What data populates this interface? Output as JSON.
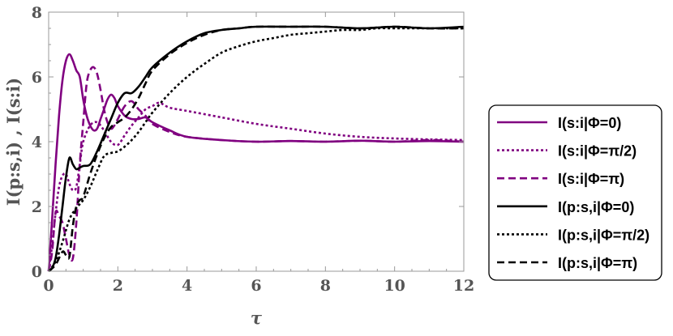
{
  "chart_data": {
    "type": "line",
    "title": "",
    "xlabel": "τ",
    "ylabel": "I(p:s,i) ,  I(s:i)",
    "xlim": [
      0,
      12
    ],
    "ylim": [
      0,
      8
    ],
    "x_ticks": [
      "0",
      "2",
      "4",
      "6",
      "8",
      "10",
      "12"
    ],
    "y_ticks": [
      "0",
      "2",
      "4",
      "6",
      "8"
    ],
    "grid": false,
    "legend_position": "right",
    "series": [
      {
        "name": "I(s:i|Φ=0)",
        "color": "#800080",
        "dash": "solid",
        "x": [
          0,
          0.1,
          0.2,
          0.3,
          0.4,
          0.5,
          0.6,
          0.7,
          0.8,
          0.9,
          1.0,
          1.1,
          1.2,
          1.3,
          1.4,
          1.5,
          1.6,
          1.7,
          1.8,
          1.9,
          2.0,
          2.2,
          2.4,
          2.6,
          2.8,
          3.0,
          3.5,
          4,
          5,
          6,
          7,
          8,
          9,
          10,
          11,
          12
        ],
        "y": [
          0,
          1.6,
          3.3,
          4.8,
          5.9,
          6.5,
          6.7,
          6.5,
          6.2,
          6.0,
          5.3,
          4.8,
          4.5,
          4.35,
          4.4,
          4.7,
          5.0,
          5.3,
          5.45,
          5.35,
          5.1,
          4.8,
          4.7,
          4.7,
          4.75,
          4.6,
          4.35,
          4.15,
          4.05,
          4.0,
          4.02,
          4.0,
          4.03,
          4.0,
          4.02,
          4.0
        ]
      },
      {
        "name": "I(s:i|Φ=π/2)",
        "color": "#800080",
        "dash": "dotted",
        "x": [
          0,
          0.1,
          0.2,
          0.3,
          0.4,
          0.5,
          0.6,
          0.7,
          0.8,
          0.9,
          1.0,
          1.2,
          1.4,
          1.6,
          1.8,
          2.0,
          2.2,
          2.4,
          2.6,
          2.8,
          3.0,
          3.2,
          3.5,
          4,
          5,
          6,
          7,
          8,
          9,
          10,
          11,
          12
        ],
        "y": [
          0,
          0.8,
          1.8,
          2.6,
          2.95,
          3.0,
          2.7,
          2.5,
          2.6,
          3.3,
          4.0,
          4.5,
          4.6,
          4.35,
          4.0,
          3.9,
          4.2,
          4.5,
          4.75,
          5.0,
          5.1,
          5.2,
          5.05,
          4.95,
          4.75,
          4.55,
          4.4,
          4.25,
          4.15,
          4.1,
          4.07,
          4.05
        ]
      },
      {
        "name": "I(s:i|Φ=π)",
        "color": "#800080",
        "dash": "dashed",
        "x": [
          0,
          0.1,
          0.2,
          0.3,
          0.4,
          0.5,
          0.6,
          0.7,
          0.8,
          0.9,
          1.0,
          1.1,
          1.2,
          1.3,
          1.4,
          1.5,
          1.6,
          1.7,
          1.8,
          1.9,
          2.0,
          2.2,
          2.4,
          2.6,
          2.8,
          3.0,
          3.5,
          4,
          5,
          6,
          7,
          8,
          9,
          10,
          11,
          12
        ],
        "y": [
          0,
          0.6,
          1.8,
          1.7,
          1.5,
          1.0,
          0.5,
          0.4,
          1.5,
          3.3,
          4.6,
          5.8,
          6.2,
          6.3,
          6.1,
          5.6,
          5.0,
          4.6,
          4.4,
          4.5,
          4.7,
          5.1,
          5.25,
          5.0,
          4.8,
          4.55,
          4.3,
          4.15,
          4.05,
          4.0,
          4.02,
          4.0,
          4.03,
          4.0,
          4.05,
          4.0
        ]
      },
      {
        "name": "I(p:s,i|Φ=0)",
        "color": "#000000",
        "dash": "solid",
        "x": [
          0,
          0.1,
          0.2,
          0.3,
          0.4,
          0.5,
          0.6,
          0.7,
          0.8,
          0.9,
          1.0,
          1.2,
          1.4,
          1.6,
          1.8,
          2.0,
          2.2,
          2.4,
          2.6,
          2.8,
          3.0,
          3.5,
          4,
          4.5,
          5,
          5.5,
          6,
          7,
          8,
          9,
          10,
          11,
          12
        ],
        "y": [
          0,
          0.1,
          0.4,
          1.1,
          2.0,
          2.9,
          3.5,
          3.3,
          3.15,
          3.2,
          3.25,
          3.3,
          3.7,
          4.2,
          4.7,
          5.2,
          5.5,
          5.5,
          5.7,
          6.0,
          6.3,
          6.75,
          7.1,
          7.35,
          7.45,
          7.5,
          7.55,
          7.55,
          7.55,
          7.5,
          7.55,
          7.5,
          7.55
        ]
      },
      {
        "name": "I(p:s,i|Φ=π/2)",
        "color": "#000000",
        "dash": "dotted",
        "x": [
          0,
          0.2,
          0.4,
          0.6,
          0.8,
          1.0,
          1.2,
          1.4,
          1.6,
          1.8,
          2.0,
          2.2,
          2.4,
          2.6,
          2.8,
          3.0,
          3.5,
          4,
          4.5,
          5,
          5.5,
          6,
          6.5,
          7,
          7.5,
          8,
          8.5,
          9,
          9.5,
          10,
          10.5,
          11,
          11.5,
          12
        ],
        "y": [
          0,
          0.3,
          0.9,
          1.6,
          1.95,
          2.2,
          2.6,
          3.1,
          3.55,
          3.65,
          3.7,
          3.85,
          4.05,
          4.3,
          4.6,
          4.9,
          5.5,
          6.0,
          6.4,
          6.75,
          6.95,
          7.1,
          7.2,
          7.3,
          7.35,
          7.4,
          7.45,
          7.45,
          7.5,
          7.5,
          7.5,
          7.5,
          7.5,
          7.5
        ]
      },
      {
        "name": "I(p:s,i|Φ=π)",
        "color": "#000000",
        "dash": "dashed",
        "x": [
          0,
          0.2,
          0.4,
          0.5,
          0.6,
          0.7,
          0.8,
          0.9,
          1.0,
          1.2,
          1.4,
          1.6,
          1.8,
          2.0,
          2.2,
          2.4,
          2.6,
          2.8,
          3.0,
          3.5,
          4,
          4.5,
          5,
          5.5,
          6,
          7,
          8,
          9,
          10,
          11,
          12
        ],
        "y": [
          0,
          0.2,
          0.6,
          0.5,
          0.45,
          1.4,
          2.0,
          2.2,
          2.3,
          3.0,
          3.6,
          4.1,
          4.45,
          4.6,
          4.75,
          5.0,
          5.35,
          5.8,
          6.2,
          6.7,
          7.05,
          7.3,
          7.45,
          7.5,
          7.55,
          7.55,
          7.55,
          7.5,
          7.55,
          7.5,
          7.5
        ]
      }
    ]
  }
}
